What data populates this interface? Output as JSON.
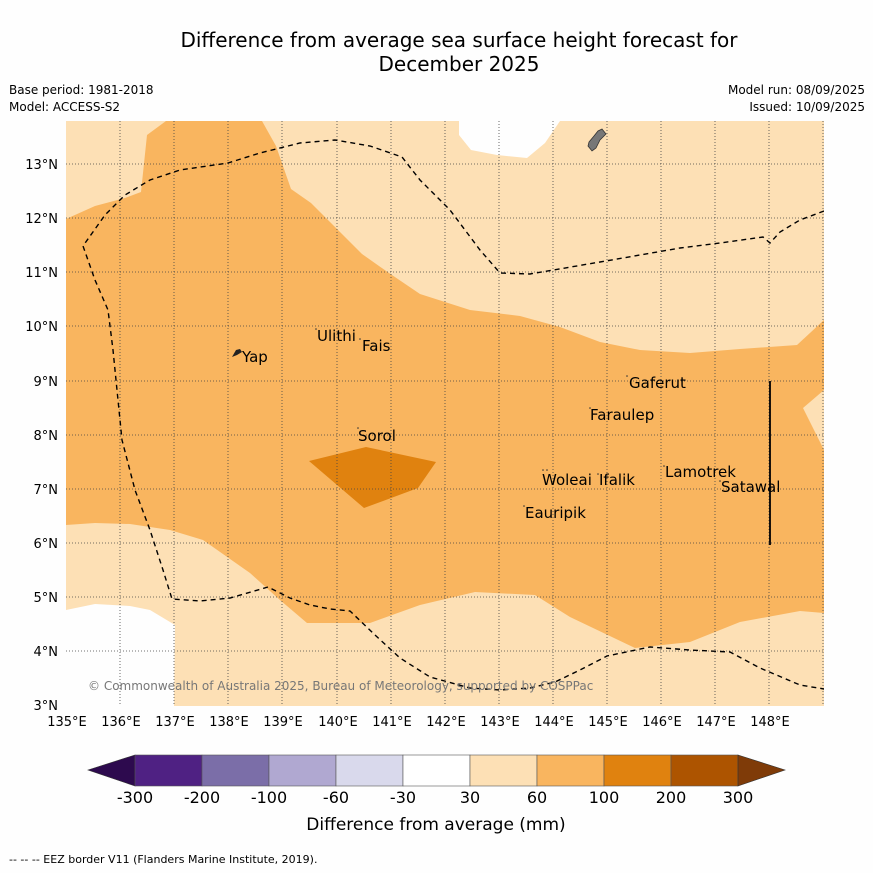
{
  "title_line1": "Difference from average sea surface height forecast for",
  "title_line2": "December 2025",
  "base_period": "Base period: 1981-2018",
  "model": "Model: ACCESS-S2",
  "model_run": "Model run: 08/09/2025",
  "issued": "Issued: 10/09/2025",
  "lat_labels": [
    "13°N",
    "12°N",
    "11°N",
    "10°N",
    "9°N",
    "8°N",
    "7°N",
    "6°N",
    "5°N",
    "4°N",
    "3°N"
  ],
  "lon_labels": [
    "135°E",
    "136°E",
    "137°E",
    "138°E",
    "139°E",
    "140°E",
    "141°E",
    "142°E",
    "143°E",
    "144°E",
    "145°E",
    "146°E",
    "147°E",
    "148°E"
  ],
  "islands": {
    "yap": "Yap",
    "ulithi": "Ulithi",
    "fais": "Fais",
    "gaferut": "Gaferut",
    "faraulep": "Faraulep",
    "sorol": "Sorol",
    "lamotrek": "Lamotrek",
    "woleai": "Woleai",
    "ifalik": "Ifalik",
    "satawal": "Satawal",
    "eauripik": "Eauripik"
  },
  "copyright": "© Commonwealth of Australia 2025, Bureau of Meteorology, supported by COSPPac",
  "colorbar": {
    "ticks": [
      "-300",
      "-200",
      "-100",
      "-60",
      "-30",
      "30",
      "60",
      "100",
      "200",
      "300"
    ],
    "label": "Difference from average (mm)",
    "colors": [
      "#4f2183",
      "#7b6ea8",
      "#b0a8d1",
      "#d9d9ec",
      "#ffffff",
      "#fde0b5",
      "#f9b55f",
      "#e0820f",
      "#ad5400"
    ],
    "under_color": "#2d0a4e",
    "over_color": "#7f3b08"
  },
  "footnote": "-- -- -- EEZ border V11 (Flanders Marine Institute, 2019)."
}
